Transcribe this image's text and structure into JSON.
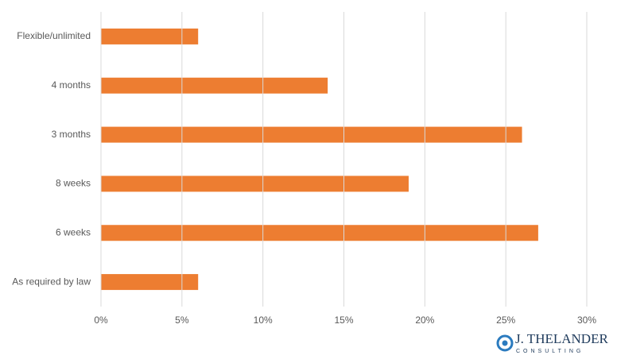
{
  "chart_data": {
    "type": "bar",
    "orientation": "horizontal",
    "categories": [
      "Flexible/unlimited",
      "4 months",
      "3 months",
      "8 weeks",
      "6 weeks",
      "As required by law"
    ],
    "values": [
      6,
      14,
      26,
      19,
      27,
      6
    ],
    "color": "#ed7d31",
    "xlim": [
      0,
      30
    ],
    "xticks": [
      {
        "value": 0,
        "label": "0%"
      },
      {
        "value": 5,
        "label": "5%"
      },
      {
        "value": 10,
        "label": "10%"
      },
      {
        "value": 15,
        "label": "15%"
      },
      {
        "value": 20,
        "label": "20%"
      },
      {
        "value": 25,
        "label": "25%"
      },
      {
        "value": 30,
        "label": "30%"
      }
    ],
    "grid": true
  },
  "logo": {
    "name": "J. THELANDER",
    "tagline": "CONSULTING"
  }
}
